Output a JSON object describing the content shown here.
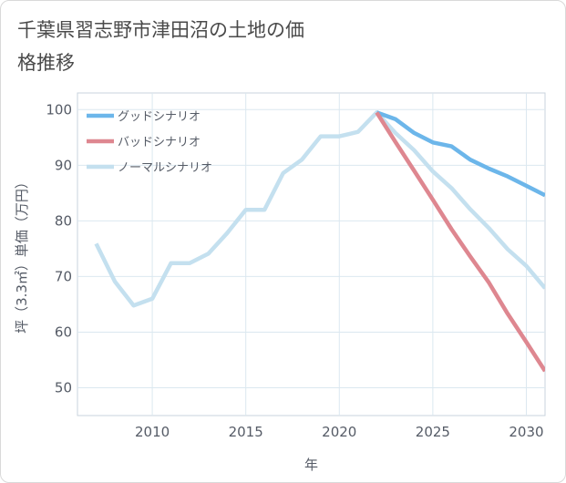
{
  "title": "千葉県習志野市津田沼の土地の価格推移",
  "chart_data": {
    "type": "line",
    "title": "千葉県習志野市津田沼の土地の価格推移",
    "xlabel": "年",
    "ylabel": "坪（3.3㎡）単価（万円）",
    "xlim": [
      2006,
      2031
    ],
    "ylim": [
      45,
      103
    ],
    "xticks": [
      2010,
      2015,
      2020,
      2025,
      2030
    ],
    "yticks": [
      50,
      60,
      70,
      80,
      90,
      100
    ],
    "grid": true,
    "legend_position": "top-right",
    "series": [
      {
        "name": "グッドシナリオ",
        "color": "#6cb6ea",
        "x": [
          2022,
          2023,
          2024,
          2025,
          2026,
          2027,
          2028,
          2029,
          2030,
          2031
        ],
        "y": [
          99.5,
          98.3,
          95.8,
          94.1,
          93.4,
          91.0,
          89.4,
          88.0,
          86.3,
          84.6
        ]
      },
      {
        "name": "バッドシナリオ",
        "color": "#de8790",
        "x": [
          2022,
          2023,
          2024,
          2025,
          2026,
          2027,
          2028,
          2029,
          2030,
          2031
        ],
        "y": [
          99.5,
          94.2,
          89.0,
          83.8,
          78.5,
          73.6,
          68.9,
          63.3,
          58.2,
          53.0
        ]
      },
      {
        "name": "ノーマルシナリオ",
        "color": "#c4e0ef",
        "x": [
          2007,
          2008,
          2009,
          2010,
          2011,
          2012,
          2013,
          2014,
          2015,
          2016,
          2017,
          2018,
          2019,
          2020,
          2021,
          2022,
          2023,
          2024,
          2025,
          2026,
          2027,
          2028,
          2029,
          2030,
          2031
        ],
        "y": [
          75.9,
          69.1,
          64.8,
          66.0,
          72.4,
          72.4,
          74.1,
          77.8,
          82.0,
          82.0,
          88.6,
          91.0,
          95.2,
          95.2,
          96.0,
          99.5,
          95.8,
          92.7,
          88.9,
          85.9,
          82.1,
          78.7,
          74.9,
          71.9,
          67.9
        ]
      }
    ]
  }
}
